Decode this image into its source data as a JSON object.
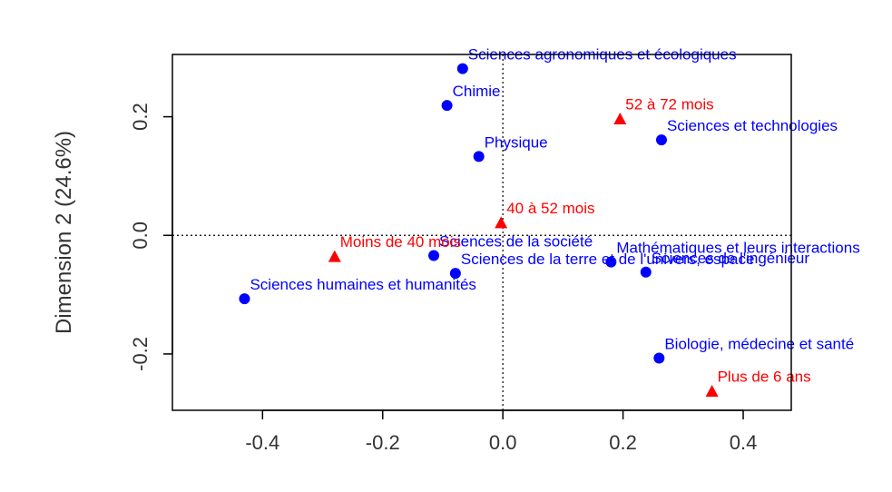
{
  "chart_data": {
    "type": "scatter",
    "title": "",
    "xlabel": "",
    "ylabel": "Dimension 2 (24.6%)",
    "xlim": [
      -0.55,
      0.48
    ],
    "ylim": [
      -0.295,
      0.305
    ],
    "x_ticks": [
      -0.4,
      -0.2,
      0.0,
      0.2,
      0.4
    ],
    "y_ticks": [
      -0.2,
      0.0,
      0.2
    ],
    "x_tick_labels": [
      "-0.4",
      "-0.2",
      "0.0",
      "0.2",
      "0.4"
    ],
    "y_tick_labels": [
      "-0.2",
      "0.0",
      "0.2"
    ],
    "grid": false,
    "reference_lines": {
      "x": 0,
      "y": 0,
      "style": "dotted"
    },
    "colors": {
      "disciplines": "#0000ff",
      "durations": "#ff0000"
    },
    "series": [
      {
        "marker": "circle",
        "color": "#0000ff",
        "points": [
          {
            "label": "Sciences agronomiques et écologiques",
            "x": -0.067,
            "y": 0.281
          },
          {
            "label": "Chimie",
            "x": -0.093,
            "y": 0.219
          },
          {
            "label": "Physique",
            "x": -0.04,
            "y": 0.133
          },
          {
            "label": "Sciences et technologies",
            "x": 0.264,
            "y": 0.161
          },
          {
            "label": "Sciences de la société",
            "x": -0.115,
            "y": -0.034
          },
          {
            "label": "Sciences de la terre et de l'univers, espace",
            "x": -0.079,
            "y": -0.064
          },
          {
            "label": "Mathématiques et leurs interactions",
            "x": 0.18,
            "y": -0.045
          },
          {
            "label": "Sciences de l'ingénieur",
            "x": 0.238,
            "y": -0.062
          },
          {
            "label": "Sciences humaines et humanités",
            "x": -0.43,
            "y": -0.107
          },
          {
            "label": "Biologie, médecine et santé",
            "x": 0.26,
            "y": -0.207
          }
        ]
      },
      {
        "marker": "triangle",
        "color": "#ff0000",
        "points": [
          {
            "label": "52 à 72 mois",
            "x": 0.195,
            "y": 0.197
          },
          {
            "label": "40 à 52 mois",
            "x": -0.003,
            "y": 0.022
          },
          {
            "label": "Moins de 40 mois",
            "x": -0.28,
            "y": -0.035
          },
          {
            "label": "Plus de 6 ans",
            "x": 0.348,
            "y": -0.262
          }
        ]
      }
    ]
  }
}
